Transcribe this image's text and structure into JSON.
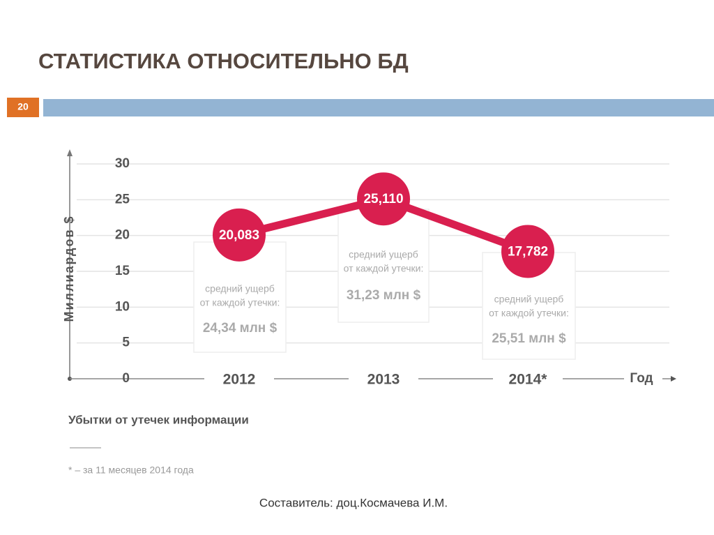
{
  "header": {
    "title": "СТАТИСТИКА ОТНОСИТЕЛЬНО БД",
    "slide_number": "20"
  },
  "chart_data": {
    "type": "line",
    "y_label": "Миллиардов $",
    "x_label": "Год",
    "categories": [
      "2012",
      "2013",
      "2014*"
    ],
    "values": [
      20.083,
      25.11,
      17.782
    ],
    "value_labels": [
      "20,083",
      "25,110",
      "17,782"
    ],
    "color": "#d91f4f",
    "ylim": [
      0,
      30
    ],
    "yticks": [
      0,
      5,
      10,
      15,
      20,
      25,
      30
    ],
    "grid": true,
    "annotations": [
      {
        "lines": [
          "средний ущерб",
          "от каждой утечки:"
        ],
        "amount": "24,34 млн $"
      },
      {
        "lines": [
          "средний ущерб",
          "от каждой утечки:"
        ],
        "amount": "31,23 млн $"
      },
      {
        "lines": [
          "средний ущерб",
          "от каждой утечки:"
        ],
        "amount": "25,51 млн $"
      }
    ],
    "caption": "Убытки от утечек информации",
    "footnote": "* – за 11 месяцев 2014 года"
  },
  "footer": {
    "author": "Составитель: доц.Космачева И.М."
  }
}
